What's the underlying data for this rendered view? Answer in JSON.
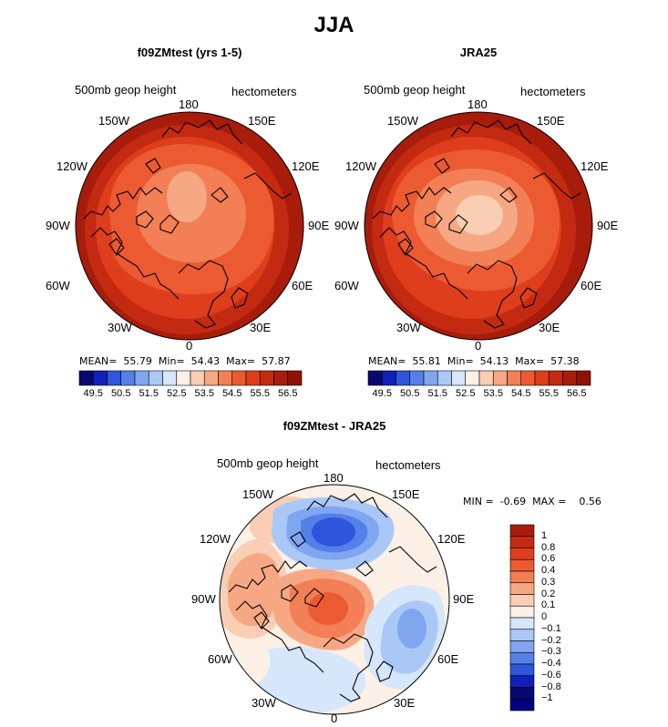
{
  "title": "JJA",
  "panels": [
    {
      "title": "f09ZMtest (yrs 1-5)",
      "variable": "500mb geop height",
      "units": "hectometers",
      "stats": {
        "mean_label": "MEAN=",
        "mean": "55.79",
        "min_label": "Min=",
        "min": "54.43",
        "max_label": "Max=",
        "max": "57.87"
      }
    },
    {
      "title": "JRA25",
      "variable": "500mb geop height",
      "units": "hectometers",
      "stats": {
        "mean_label": "MEAN=",
        "mean": "55.81",
        "min_label": "Min=",
        "min": "54.13",
        "max_label": "Max=",
        "max": "57.38"
      }
    }
  ],
  "diff_panel": {
    "title": "f09ZMtest - JRA25",
    "variable": "500mb geop height",
    "units": "hectometers",
    "stats": {
      "min_label": "MIN =",
      "min": "-0.69",
      "max_label": "MAX =",
      "max": "0.56"
    }
  },
  "longitude_labels": [
    "180",
    "150E",
    "120E",
    "90E",
    "60E",
    "30E",
    "0",
    "30W",
    "60W",
    "90W",
    "120W",
    "150W"
  ],
  "colorbar_abs": {
    "tick_labels": [
      "49.5",
      "50.5",
      "51.5",
      "52.5",
      "53.5",
      "54.5",
      "55.5",
      "56.5"
    ],
    "colors": [
      "#08086e",
      "#1020b8",
      "#2e55dc",
      "#5480e8",
      "#80a6f0",
      "#aac8f6",
      "#d6e6fb",
      "#fdf0e6",
      "#f9ceb4",
      "#f6a884",
      "#f27f55",
      "#ec5a32",
      "#de3e1c",
      "#c42a12",
      "#a81c0c",
      "#8e1206"
    ]
  },
  "colorbar_diff": {
    "tick_labels": [
      "1",
      "0.8",
      "0.6",
      "0.4",
      "0.3",
      "0.2",
      "0.1",
      "0",
      "−0.1",
      "−0.2",
      "−0.3",
      "−0.4",
      "−0.6",
      "−0.8",
      "−1"
    ],
    "colors": [
      "#a81c0c",
      "#c42a12",
      "#de3e1c",
      "#ec5a32",
      "#f27f55",
      "#f6a884",
      "#f9ceb4",
      "#fdf0e6",
      "#d6e6fb",
      "#aac8f6",
      "#80a6f0",
      "#5480e8",
      "#2e55dc",
      "#1020b8",
      "#08086e",
      "#000080"
    ]
  },
  "map_colors": {
    "dark": "#a81c0c",
    "darker": "#c42a12",
    "mid": "#de3e1c",
    "orange": "#ec5a32",
    "light_orange": "#f27f55",
    "pale": "#f6a884",
    "paler": "#f9ceb4",
    "neutral": "#fdf0e6",
    "light_blue": "#d6e6fb",
    "blue1": "#aac8f6",
    "blue2": "#80a6f0",
    "blue3": "#5480e8",
    "blue4": "#2e55dc"
  }
}
